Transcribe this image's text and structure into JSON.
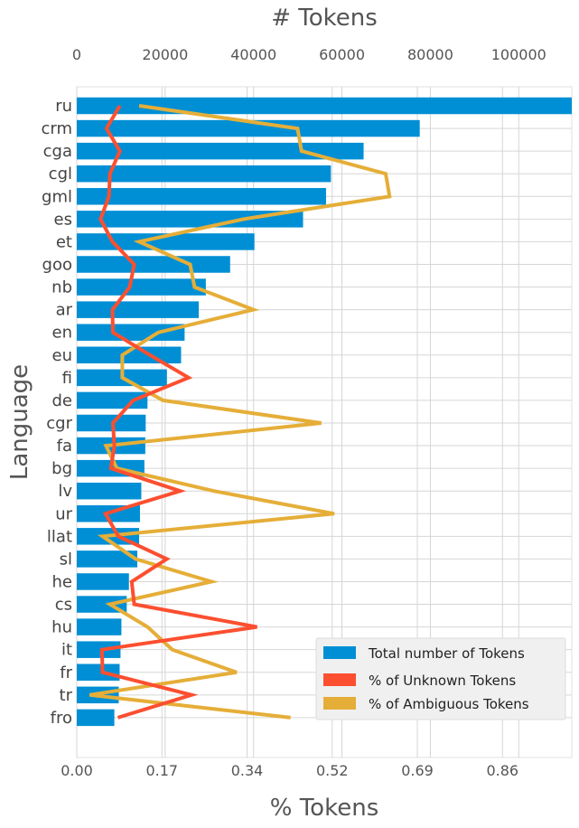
{
  "chart_data": {
    "type": "bar",
    "orientation": "horizontal",
    "ylabel": "Language",
    "top_xlabel": "# Tokens",
    "bottom_xlabel": "% Tokens",
    "categories": [
      "ru",
      "crm",
      "cga",
      "cgl",
      "gml",
      "es",
      "et",
      "goo",
      "nb",
      "ar",
      "en",
      "eu",
      "fi",
      "de",
      "cgr",
      "fa",
      "bg",
      "lv",
      "ur",
      "llat",
      "sl",
      "he",
      "cs",
      "hu",
      "it",
      "fr",
      "tr",
      "fro"
    ],
    "top_axis": {
      "range": [
        0,
        112000
      ],
      "ticks": [
        0,
        20000,
        40000,
        60000,
        80000,
        100000
      ],
      "tick_labels": [
        "0",
        "20000",
        "40000",
        "60000",
        "80000",
        "100000"
      ]
    },
    "bottom_axis": {
      "range": [
        0,
        1.0
      ],
      "ticks": [
        0,
        0.172,
        0.344,
        0.516,
        0.688,
        0.86
      ],
      "tick_labels": [
        "0.00",
        "0.17",
        "0.34",
        "0.52",
        "0.69",
        "0.86"
      ]
    },
    "grid": true,
    "legend_position": "bottom-right",
    "series": [
      {
        "name": "Total number of Tokens",
        "kind": "bar",
        "axis": "top",
        "color": "#008fd5",
        "values": [
          112000,
          77600,
          64900,
          57500,
          56400,
          51200,
          40200,
          34700,
          29200,
          27600,
          24400,
          23600,
          20400,
          16000,
          15600,
          15500,
          15300,
          14600,
          14300,
          14100,
          13700,
          11800,
          11300,
          10100,
          9900,
          9700,
          9500,
          8500
        ]
      },
      {
        "name": "% of Unknown Tokens",
        "kind": "line",
        "axis": "bottom",
        "color": "#fc4f30",
        "values": [
          0.087,
          0.06,
          0.087,
          0.067,
          0.065,
          0.048,
          0.072,
          0.116,
          0.107,
          0.072,
          0.073,
          0.148,
          0.226,
          0.114,
          0.073,
          0.076,
          0.069,
          0.209,
          0.058,
          0.084,
          0.182,
          0.111,
          0.116,
          0.364,
          0.051,
          0.052,
          0.232,
          0.083
        ]
      },
      {
        "name": "% of Ambiguous Tokens",
        "kind": "line",
        "axis": "bottom",
        "color": "#e5ae38",
        "values": [
          0.126,
          0.446,
          0.454,
          0.624,
          0.632,
          0.338,
          0.126,
          0.229,
          0.238,
          0.357,
          0.165,
          0.092,
          0.092,
          0.174,
          0.494,
          0.059,
          0.081,
          0.277,
          0.52,
          0.052,
          0.119,
          0.272,
          0.067,
          0.143,
          0.193,
          0.323,
          0.026,
          0.432
        ]
      }
    ]
  }
}
